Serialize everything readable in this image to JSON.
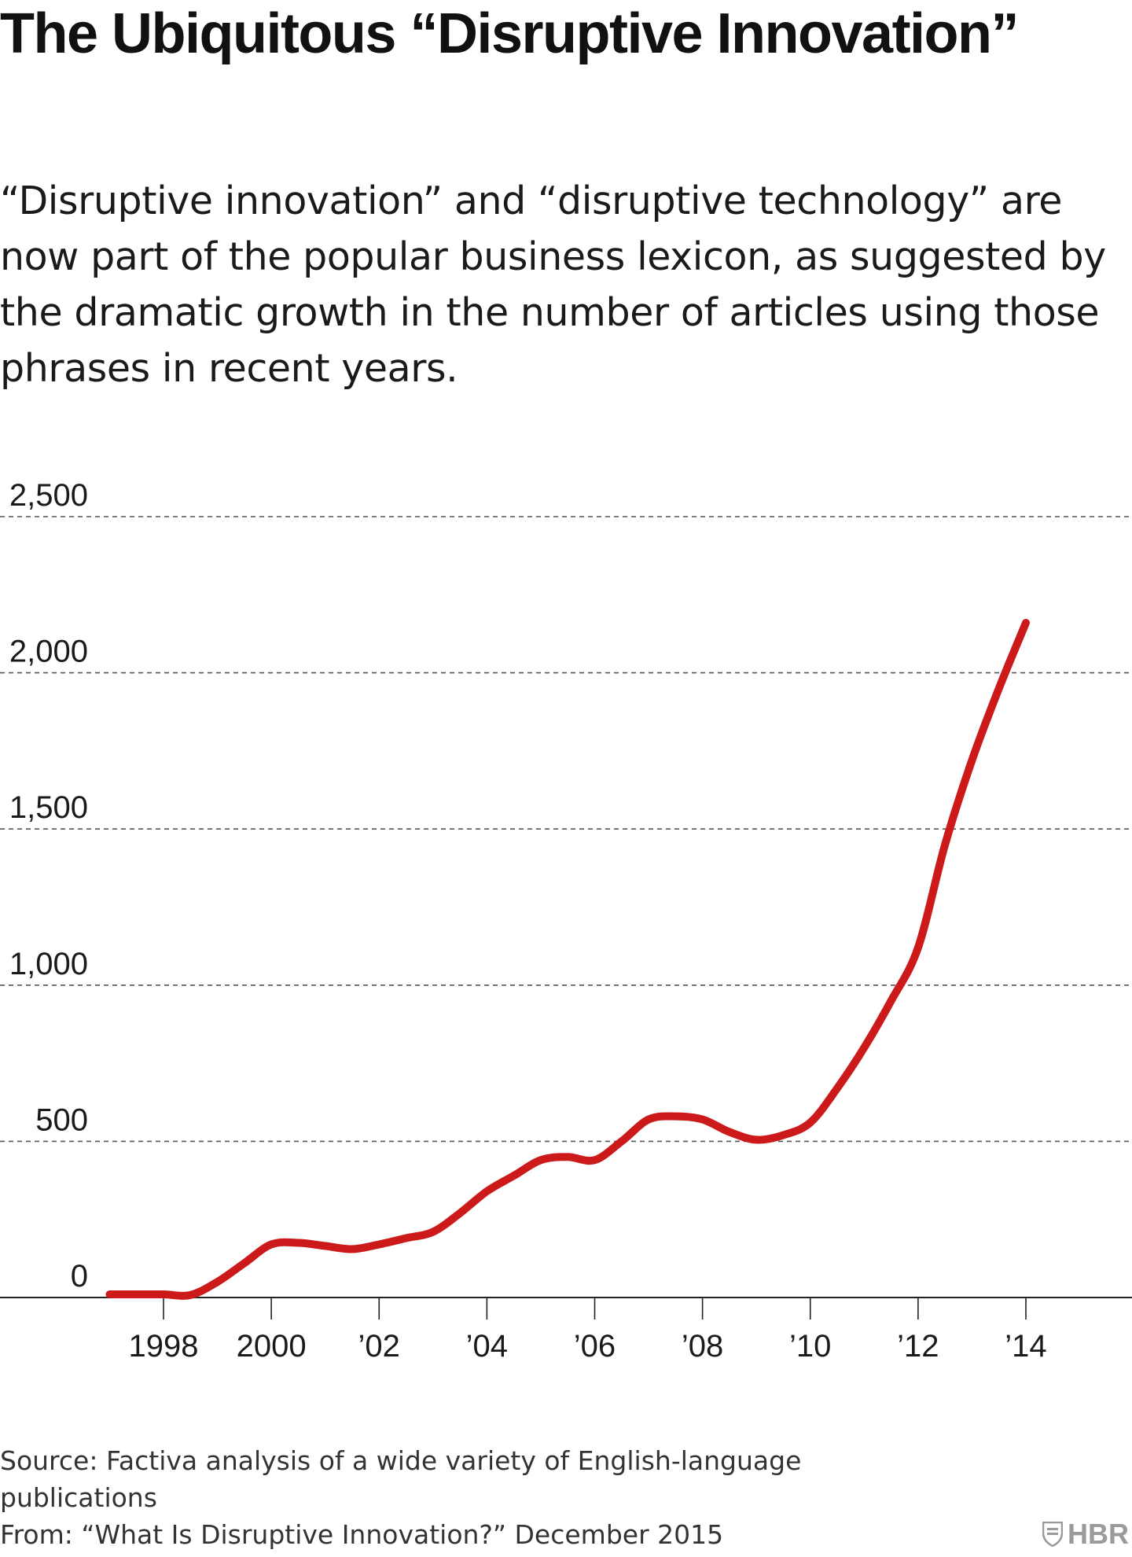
{
  "header": {
    "title": "The Ubiquitous “Disruptive Innovation”",
    "subtitle": "“Disruptive innovation” and “disruptive technology” are now part of the popular business lexicon, as suggested by the dramatic growth in the number of articles using those phrases in recent years."
  },
  "footer": {
    "source": "Source: Factiva analysis of a wide variety of English-language publications",
    "from": "From: “What Is Disruptive Innovation?” December 2015"
  },
  "brand": {
    "logo_text": "HBR",
    "logo_icon": "hbr-shield-icon"
  },
  "colors": {
    "line": "#cc1a1a",
    "grid": "#555555",
    "axis": "#222222",
    "logo": "#9a9a9a"
  },
  "chart_data": {
    "type": "line",
    "title": "",
    "xlabel": "",
    "ylabel": "",
    "xlim": [
      1996.5,
      2015.5
    ],
    "ylim": [
      0,
      2500
    ],
    "grid": true,
    "y_ticks": [
      0,
      500,
      1000,
      1500,
      2000,
      2500
    ],
    "y_tick_labels": [
      "0",
      "500",
      "1,000",
      "1,500",
      "2,000",
      "2,500"
    ],
    "x_ticks": [
      1998,
      2000,
      2002,
      2004,
      2006,
      2008,
      2010,
      2012,
      2014
    ],
    "x_tick_labels": [
      "1998",
      "2000",
      "’02",
      "’04",
      "’06",
      "’08",
      "’10",
      "’12",
      "’14"
    ],
    "series": [
      {
        "x": [
          1997.0,
          1997.5,
          1998.0,
          1998.5,
          1999.0,
          1999.5,
          2000.0,
          2000.5,
          2001.0,
          2001.5,
          2002.0,
          2002.5,
          2003.0,
          2003.5,
          2004.0,
          2004.5,
          2005.0,
          2005.5,
          2006.0,
          2006.5,
          2007.0,
          2007.5,
          2008.0,
          2008.5,
          2009.0,
          2009.5,
          2010.0,
          2010.5,
          2011.0,
          2011.5,
          2012.0,
          2012.5,
          2013.0,
          2013.5,
          2014.0
        ],
        "y": [
          10,
          10,
          10,
          8,
          50,
          110,
          170,
          175,
          165,
          155,
          170,
          190,
          210,
          270,
          340,
          390,
          440,
          450,
          440,
          500,
          570,
          580,
          570,
          530,
          505,
          520,
          560,
          670,
          800,
          950,
          1120,
          1450,
          1720,
          1950,
          2160
        ]
      }
    ]
  }
}
